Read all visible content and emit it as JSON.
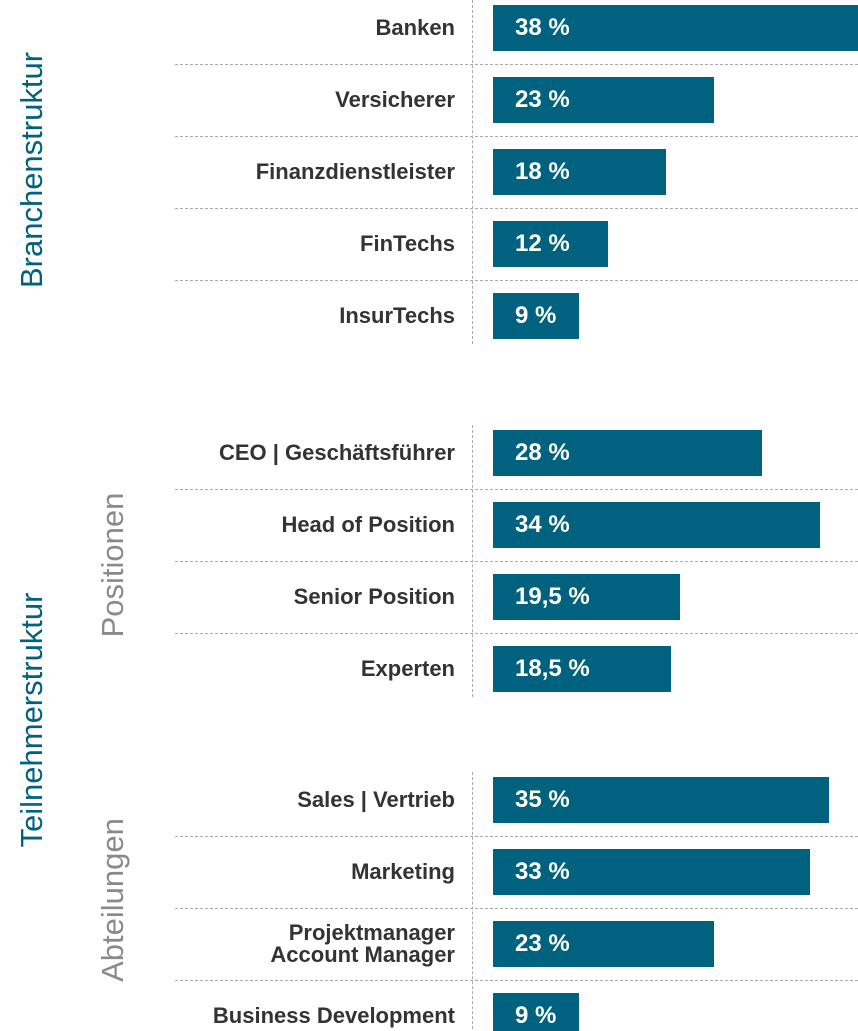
{
  "group_title": "Teilnehmerstruktur",
  "chart_data": [
    {
      "type": "bar",
      "orientation": "horizontal",
      "title": "Branchenstruktur",
      "title_color": "#00627e",
      "color": "#00627e",
      "categories": [
        "Banken",
        "Versicherer",
        "Finanzdienstleister",
        "FinTechs",
        "InsurTechs"
      ],
      "values": [
        38,
        23,
        18,
        12,
        9
      ],
      "value_labels": [
        "38 %",
        "23 %",
        "18 %",
        "12 %",
        "9 %"
      ],
      "xlim": [
        0,
        38
      ]
    },
    {
      "type": "bar",
      "orientation": "horizontal",
      "title": "Positionen",
      "title_color": "#8a8a8a",
      "color": "#00627e",
      "categories": [
        "CEO | Geschäftsführer",
        "Head of Position",
        "Senior Position",
        "Experten"
      ],
      "values": [
        28,
        34,
        19.5,
        18.5
      ],
      "value_labels": [
        "28 %",
        "34 %",
        "19,5 %",
        "18,5 %"
      ],
      "xlim": [
        0,
        38
      ]
    },
    {
      "type": "bar",
      "orientation": "horizontal",
      "title": "Abteilungen",
      "title_color": "#8a8a8a",
      "color": "#00627e",
      "categories": [
        "Sales | Vertrieb",
        "Marketing",
        "Projektmanager\nAccount Manager",
        "Business Development"
      ],
      "values": [
        35,
        33,
        23,
        9
      ],
      "value_labels": [
        "35 %",
        "33 %",
        "23 %",
        "9 %"
      ],
      "xlim": [
        0,
        38
      ]
    }
  ]
}
